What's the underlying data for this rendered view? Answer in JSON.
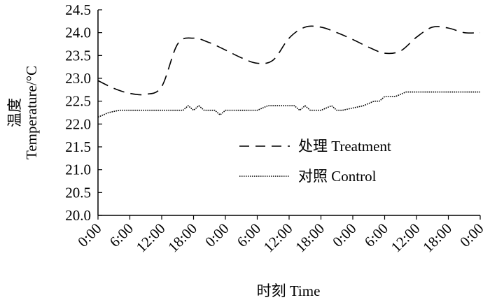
{
  "chart_data": {
    "type": "line",
    "title": "",
    "xlabel": "时刻  Time",
    "ylabel_cn": "温度",
    "ylabel_en": "Temperature/°C",
    "ylim": [
      20.0,
      24.5
    ],
    "yticks": [
      "20.0",
      "20.5",
      "21.0",
      "21.5",
      "22.0",
      "22.5",
      "23.0",
      "23.5",
      "24.0",
      "24.5"
    ],
    "x_tick_labels": [
      "0:00",
      "6:00",
      "12:00",
      "18:00",
      "0:00",
      "6:00",
      "12:00",
      "18:00",
      "0:00",
      "6:00",
      "12:00",
      "18:00",
      "0:00"
    ],
    "x_hours": [
      0,
      6,
      12,
      18,
      24,
      30,
      36,
      42,
      48,
      54,
      60,
      66,
      72
    ],
    "grid": false,
    "legend_position": "center-right",
    "series": [
      {
        "name": "处理  Treatment",
        "style": "dashed",
        "x": [
          0,
          3,
          6,
          9,
          12,
          15,
          18,
          21,
          24,
          27,
          30,
          33,
          36,
          39,
          42,
          45,
          48,
          51,
          54,
          57,
          60,
          63,
          66,
          69,
          72
        ],
        "y": [
          22.95,
          22.78,
          22.67,
          22.65,
          22.82,
          23.75,
          23.88,
          23.78,
          23.62,
          23.45,
          23.33,
          23.4,
          23.88,
          24.12,
          24.12,
          24.0,
          23.85,
          23.68,
          23.55,
          23.6,
          23.9,
          24.12,
          24.1,
          24.0,
          24.0
        ]
      },
      {
        "name": "对照  Control",
        "style": "dotted",
        "x": [
          0,
          2,
          4,
          6,
          8,
          10,
          12,
          14,
          16,
          17,
          18,
          19,
          20,
          21,
          22,
          23,
          24,
          25,
          26,
          28,
          30,
          32,
          34,
          36,
          37,
          38,
          39,
          40,
          41,
          42,
          43,
          44,
          45,
          46,
          48,
          50,
          52,
          53,
          54,
          56,
          58,
          60,
          62,
          64,
          66,
          68,
          70,
          72
        ],
        "y": [
          22.15,
          22.25,
          22.3,
          22.3,
          22.3,
          22.3,
          22.3,
          22.3,
          22.3,
          22.4,
          22.3,
          22.4,
          22.3,
          22.3,
          22.3,
          22.2,
          22.3,
          22.3,
          22.3,
          22.3,
          22.3,
          22.4,
          22.4,
          22.4,
          22.4,
          22.3,
          22.4,
          22.3,
          22.3,
          22.3,
          22.35,
          22.4,
          22.3,
          22.3,
          22.35,
          22.4,
          22.5,
          22.5,
          22.6,
          22.6,
          22.7,
          22.7,
          22.7,
          22.7,
          22.7,
          22.7,
          22.7,
          22.7
        ]
      }
    ]
  }
}
